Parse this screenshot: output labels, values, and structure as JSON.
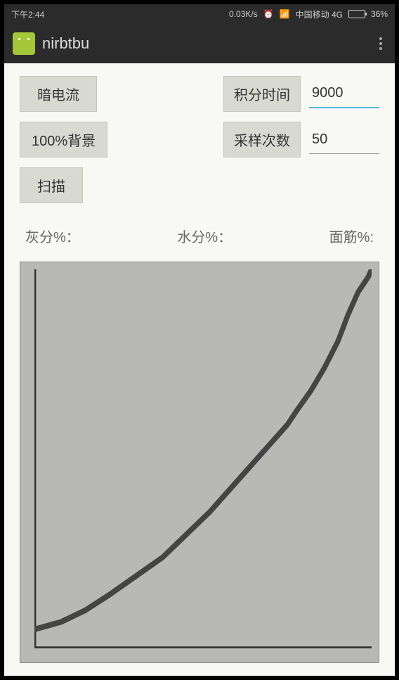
{
  "status_bar": {
    "time": "下午2:44",
    "data_rate": "0.03K/s",
    "carrier": "中国移动 4G",
    "battery_pct": "36%"
  },
  "app": {
    "title": "nirbtbu"
  },
  "controls": {
    "dark_current_btn": "暗电流",
    "integration_time_label": "积分时间",
    "integration_time_value": "9000",
    "background_btn": "100%背景",
    "sample_count_label": "采样次数",
    "sample_count_value": "50",
    "scan_btn": "扫描"
  },
  "results": {
    "ash_label": "灰分%：",
    "moisture_label": "水分%：",
    "gluten_label": "面筋%:"
  },
  "chart": {
    "type": "line",
    "background_color": "#b8b8b4",
    "curve_color": "#444444",
    "axis_color": "#333333",
    "x_range": [
      900,
      1700
    ],
    "y_range": [
      0,
      4000
    ],
    "curve_points": [
      [
        0,
        95
      ],
      [
        8,
        93
      ],
      [
        15,
        90
      ],
      [
        22,
        86
      ],
      [
        30,
        81
      ],
      [
        38,
        76
      ],
      [
        45,
        70
      ],
      [
        52,
        64
      ],
      [
        58,
        58
      ],
      [
        64,
        52
      ],
      [
        70,
        46
      ],
      [
        75,
        41
      ],
      [
        78,
        37
      ],
      [
        82,
        32
      ],
      [
        86,
        26
      ],
      [
        90,
        19
      ],
      [
        93,
        12
      ],
      [
        96,
        6
      ],
      [
        99,
        2
      ],
      [
        100,
        0
      ]
    ]
  }
}
